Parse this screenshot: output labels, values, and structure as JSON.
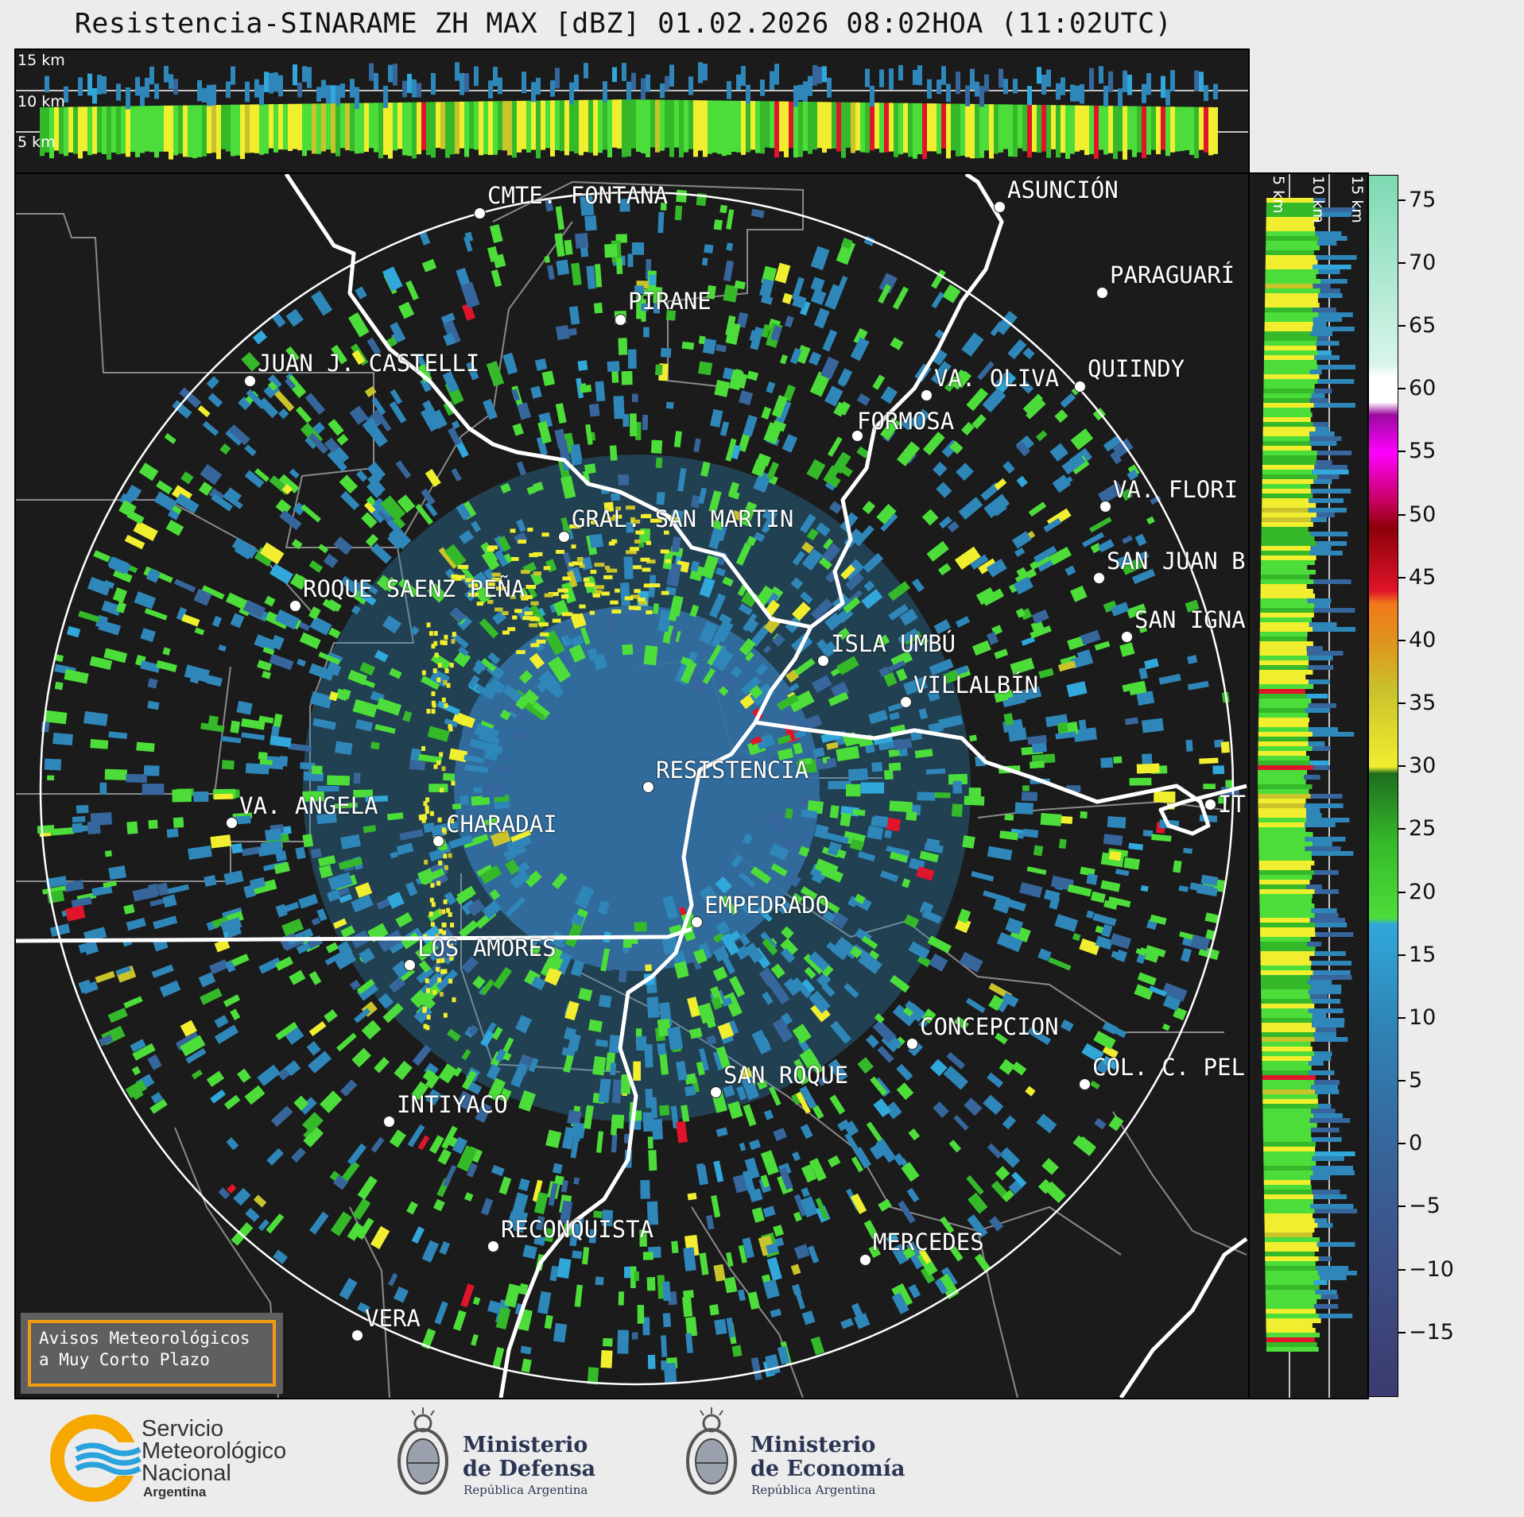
{
  "title": "Resistencia-SINARAME ZH MAX [dBZ] 01.02.2026 08:02HOA (11:02UTC)",
  "top_panel": {
    "altitude_labels": [
      "15 km",
      "10 km",
      "5 km"
    ]
  },
  "side_panel": {
    "altitude_labels": [
      "5 km",
      "10 km",
      "15 km"
    ]
  },
  "cities": [
    {
      "name": "CMTE. FONTANA"
    },
    {
      "name": "ASUNCIÓN"
    },
    {
      "name": "PARAGUARÍ"
    },
    {
      "name": "PIRANE"
    },
    {
      "name": "JUAN J. CASTELLI"
    },
    {
      "name": "QUIINDY"
    },
    {
      "name": "VA. OLIVA"
    },
    {
      "name": "FORMOSA"
    },
    {
      "name": "VA. FLORI"
    },
    {
      "name": "GRAL. SAN MARTIN"
    },
    {
      "name": "SAN JUAN B"
    },
    {
      "name": "ROQUE SAENZ PEÑA"
    },
    {
      "name": "SAN IGNA"
    },
    {
      "name": "ISLA UMBÚ"
    },
    {
      "name": "VILLALBÍN"
    },
    {
      "name": "RESISTENCIA"
    },
    {
      "name": "IT"
    },
    {
      "name": "VA. ANGELA"
    },
    {
      "name": "CHARADAI"
    },
    {
      "name": "EMPEDRADO"
    },
    {
      "name": "LOS AMORES"
    },
    {
      "name": "CONCEPCION"
    },
    {
      "name": "COL. C. PEL"
    },
    {
      "name": "SAN ROQUE"
    },
    {
      "name": "INTIYACO"
    },
    {
      "name": "RECONQUISTA"
    },
    {
      "name": "MERCEDES"
    },
    {
      "name": "VERA"
    }
  ],
  "warning_box": {
    "line1": "Avisos Meteorológicos",
    "line2": "a Muy Corto Plazo",
    "border_color": "#f29a11"
  },
  "colorbar": {
    "unit": "dBZ",
    "min": -20,
    "max": 77,
    "ticks": [
      "75",
      "70",
      "65",
      "60",
      "55",
      "50",
      "45",
      "40",
      "35",
      "30",
      "25",
      "20",
      "15",
      "10",
      "5",
      "0",
      "−5",
      "−10",
      "−15"
    ],
    "tick_values": [
      75,
      70,
      65,
      60,
      55,
      50,
      45,
      40,
      35,
      30,
      25,
      20,
      15,
      10,
      5,
      0,
      -5,
      -10,
      -15
    ],
    "color_stops": [
      {
        "value": -20,
        "color": "#3c3a6e"
      },
      {
        "value": -10,
        "color": "#3d4f85"
      },
      {
        "value": 0,
        "color": "#36669b"
      },
      {
        "value": 10,
        "color": "#2f86b8"
      },
      {
        "value": 17.5,
        "color": "#31a7da"
      },
      {
        "value": 18,
        "color": "#4ddd3a"
      },
      {
        "value": 24,
        "color": "#35b92a"
      },
      {
        "value": 29.5,
        "color": "#1f6e1f"
      },
      {
        "value": 30,
        "color": "#f0ee2f"
      },
      {
        "value": 36,
        "color": "#c9c32c"
      },
      {
        "value": 40,
        "color": "#e0931e"
      },
      {
        "value": 43,
        "color": "#f0781a"
      },
      {
        "value": 44,
        "color": "#e0142a"
      },
      {
        "value": 49,
        "color": "#8c0008"
      },
      {
        "value": 51,
        "color": "#c4005a"
      },
      {
        "value": 55,
        "color": "#ff00ff"
      },
      {
        "value": 58,
        "color": "#9b0aa0"
      },
      {
        "value": 59,
        "color": "#ffffff"
      },
      {
        "value": 61,
        "color": "#ffffff"
      },
      {
        "value": 62,
        "color": "#d8f5ea"
      },
      {
        "value": 77,
        "color": "#7cd9b2"
      }
    ]
  },
  "logos": {
    "smn_line1": "Servicio",
    "smn_line2": "Meteorológico",
    "smn_line3": "Nacional",
    "smn_country": "Argentina",
    "defensa_line1": "Ministerio",
    "defensa_line2": "de Defensa",
    "defensa_sub": "República Argentina",
    "economia_line1": "Ministerio",
    "economia_line2": "de Economía",
    "economia_sub": "República Argentina"
  }
}
